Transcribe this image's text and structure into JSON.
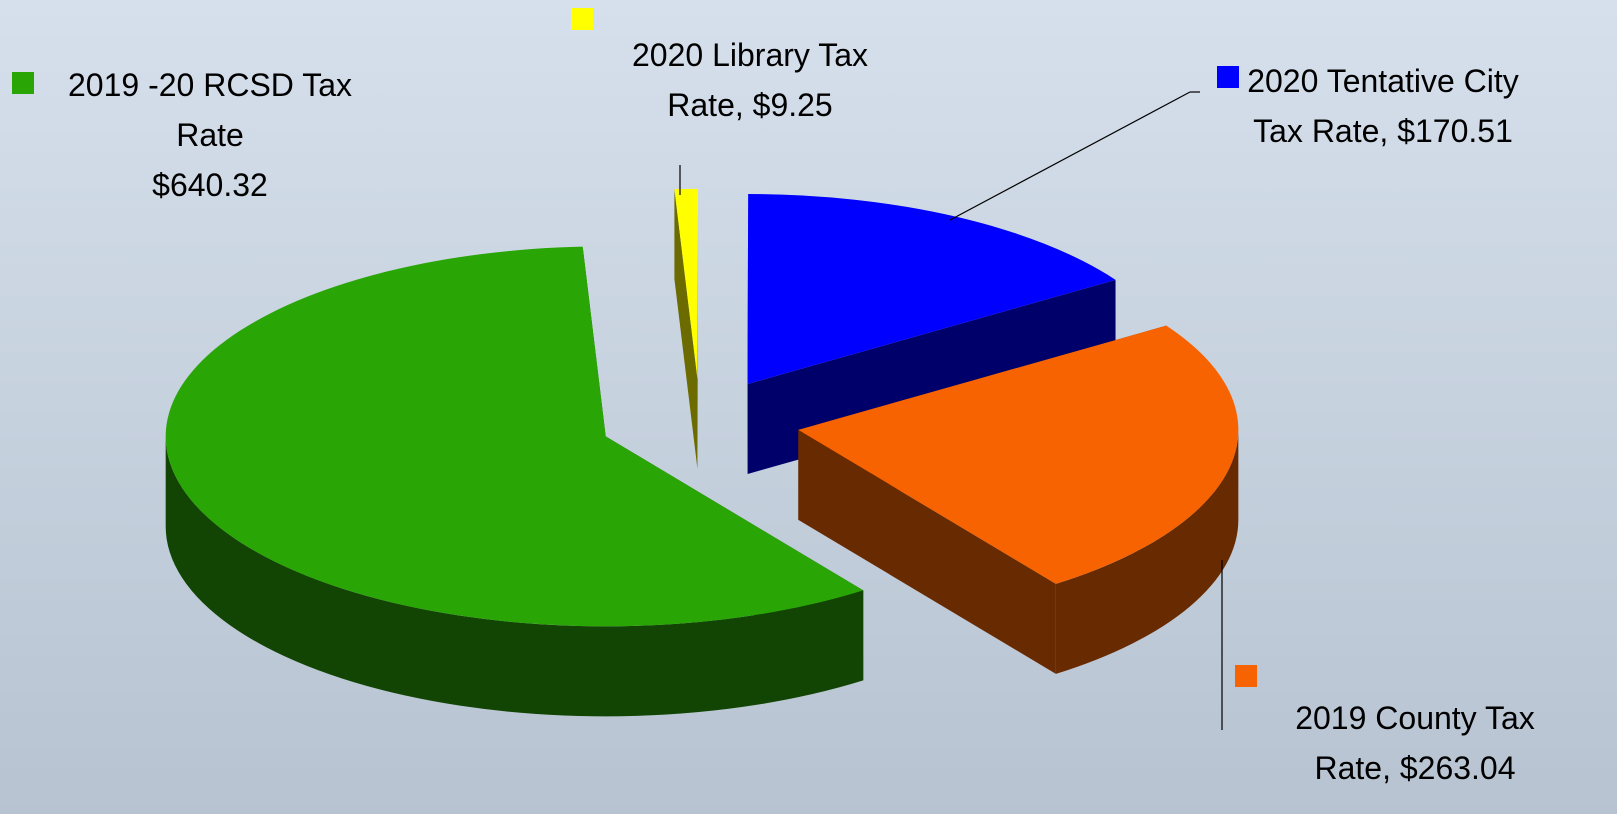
{
  "chart_data": {
    "type": "pie3d",
    "categories": [
      "2020 Library Tax Rate,",
      "2020 Tentative City Tax Rate,",
      "2019 County Tax Rate,",
      "2019 -20 RCSD Tax Rate"
    ],
    "values": [
      9.25,
      170.51,
      263.04,
      640.32
    ],
    "value_labels": [
      "$9.25",
      "$170.51",
      "$263.04",
      "$640.32"
    ],
    "colors": [
      "#ffff00",
      "#0000ff",
      "#f76300",
      "#2aa506"
    ]
  }
}
